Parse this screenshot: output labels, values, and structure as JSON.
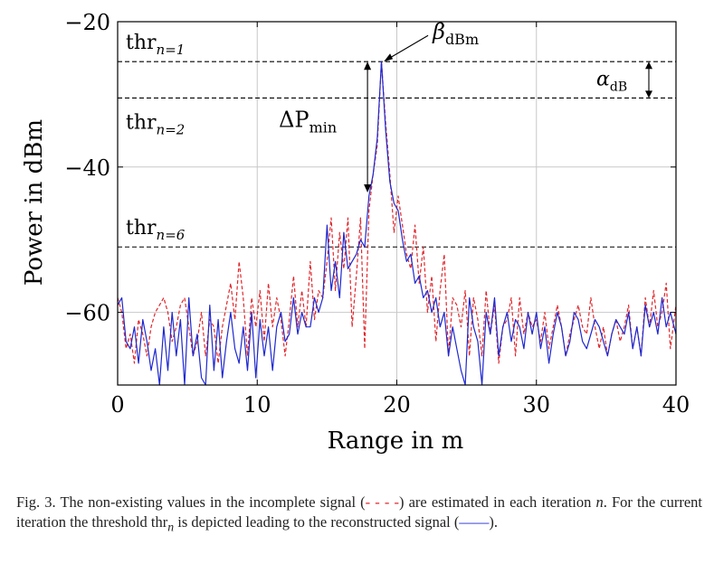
{
  "chart_data": {
    "type": "line",
    "xlabel": "Range in m",
    "ylabel": "Power in dBm",
    "xlim": [
      0,
      40
    ],
    "ylim": [
      -70,
      -20
    ],
    "xticks": [
      0,
      10,
      20,
      30,
      40
    ],
    "yticks": [
      -20,
      -40,
      -60
    ],
    "xtick_labels": [
      "0",
      "10",
      "20",
      "30",
      "40"
    ],
    "ytick_labels": [
      "−20",
      "−40",
      "−60"
    ],
    "grid": true,
    "thresholds": [
      {
        "label_base": "thr",
        "label_sub": "n=1",
        "value": -25.5
      },
      {
        "label_base": "thr",
        "label_sub": "n=2",
        "value": -30.5
      },
      {
        "label_base": "thr",
        "label_sub": "n=6",
        "value": -51
      }
    ],
    "annotations": {
      "beta": {
        "base": "β",
        "sub": "dBm",
        "x": 19,
        "y": -25.5
      },
      "alpha": {
        "base": "α",
        "sub": "dB",
        "y_top": -25.5,
        "y_bottom": -30.5
      },
      "delta": {
        "base": "ΔP",
        "sub": "min",
        "x": 17.9,
        "y_top": -25.5,
        "y_bottom": -43.5
      }
    },
    "series": [
      {
        "name": "estimated",
        "style": "dashed",
        "color": "#e0262b",
        "x": [
          0,
          0.3,
          0.6,
          0.9,
          1.2,
          1.5,
          1.8,
          2.1,
          2.4,
          2.7,
          3.0,
          3.3,
          3.6,
          3.9,
          4.2,
          4.5,
          4.8,
          5.1,
          5.4,
          5.7,
          6.0,
          6.3,
          6.6,
          6.9,
          7.2,
          7.5,
          7.8,
          8.1,
          8.4,
          8.7,
          9.0,
          9.3,
          9.6,
          9.9,
          10.2,
          10.5,
          10.8,
          11.1,
          11.4,
          11.7,
          12.0,
          12.3,
          12.6,
          12.9,
          13.2,
          13.5,
          13.8,
          14.1,
          14.4,
          14.7,
          15.0,
          15.3,
          15.6,
          15.9,
          16.2,
          16.5,
          16.8,
          17.1,
          17.4,
          17.7,
          18.0,
          18.3,
          18.6,
          18.9,
          19.2,
          19.5,
          19.8,
          20.1,
          20.4,
          20.7,
          21.0,
          21.3,
          21.6,
          21.9,
          22.2,
          22.5,
          22.8,
          23.1,
          23.4,
          23.7,
          24.0,
          24.3,
          24.6,
          24.9,
          25.2,
          25.5,
          25.8,
          26.1,
          26.4,
          26.7,
          27.0,
          27.3,
          27.6,
          27.9,
          28.2,
          28.5,
          28.8,
          29.1,
          29.4,
          29.7,
          30.0,
          30.3,
          30.6,
          30.9,
          31.2,
          31.5,
          31.8,
          32.1,
          32.4,
          32.7,
          33.0,
          33.3,
          33.6,
          33.9,
          34.2,
          34.5,
          34.8,
          35.1,
          35.4,
          35.7,
          36.0,
          36.3,
          36.6,
          36.9,
          37.2,
          37.5,
          37.8,
          38.1,
          38.4,
          38.7,
          39.0,
          39.3,
          39.6,
          40.0
        ],
        "values": [
          -58,
          -60,
          -65,
          -63,
          -67,
          -61,
          -63,
          -66,
          -62,
          -60,
          -59,
          -58,
          -60,
          -64,
          -62,
          -59,
          -58,
          -62,
          -66,
          -64,
          -60,
          -66,
          -61,
          -62,
          -67,
          -62,
          -59,
          -56,
          -61,
          -53,
          -58,
          -66,
          -58,
          -62,
          -57,
          -64,
          -56,
          -62,
          -58,
          -61,
          -66,
          -61,
          -55,
          -62,
          -57,
          -62,
          -53,
          -61,
          -57,
          -58,
          -53,
          -47,
          -57,
          -49,
          -54,
          -47,
          -62,
          -55,
          -47,
          -65,
          -46,
          -41,
          -37,
          -25.5,
          -34,
          -41,
          -49,
          -44,
          -48,
          -52,
          -54,
          -48,
          -56,
          -51,
          -60,
          -55,
          -64,
          -57,
          -52,
          -66,
          -58,
          -59,
          -62,
          -57,
          -66,
          -58,
          -61,
          -66,
          -57,
          -63,
          -59,
          -67,
          -62,
          -61,
          -58,
          -66,
          -58,
          -63,
          -60,
          -62,
          -61,
          -64,
          -60,
          -65,
          -62,
          -59,
          -62,
          -66,
          -63,
          -61,
          -59,
          -62,
          -63,
          -58,
          -62,
          -65,
          -62,
          -66,
          -63,
          -61,
          -64,
          -62,
          -59,
          -65,
          -62,
          -66,
          -58,
          -62,
          -57,
          -62,
          -60,
          -56,
          -65,
          -59
        ]
      },
      {
        "name": "reconstructed",
        "style": "solid",
        "color": "#1e28d0",
        "x": [
          0,
          0.3,
          0.6,
          0.9,
          1.2,
          1.5,
          1.8,
          2.1,
          2.4,
          2.7,
          3.0,
          3.3,
          3.6,
          3.9,
          4.2,
          4.5,
          4.8,
          5.1,
          5.4,
          5.7,
          6.0,
          6.3,
          6.6,
          6.9,
          7.2,
          7.5,
          7.8,
          8.1,
          8.4,
          8.7,
          9.0,
          9.3,
          9.6,
          9.9,
          10.2,
          10.5,
          10.8,
          11.1,
          11.4,
          11.7,
          12.0,
          12.3,
          12.6,
          12.9,
          13.2,
          13.5,
          13.8,
          14.1,
          14.4,
          14.7,
          15.0,
          15.3,
          15.6,
          15.9,
          16.2,
          16.5,
          16.8,
          17.1,
          17.4,
          17.7,
          18.0,
          18.3,
          18.6,
          18.9,
          19.2,
          19.5,
          19.8,
          20.1,
          20.4,
          20.7,
          21.0,
          21.3,
          21.6,
          21.9,
          22.2,
          22.5,
          22.8,
          23.1,
          23.4,
          23.7,
          24.0,
          24.3,
          24.6,
          24.9,
          25.2,
          25.5,
          25.8,
          26.1,
          26.4,
          26.7,
          27.0,
          27.3,
          27.6,
          27.9,
          28.2,
          28.5,
          28.8,
          29.1,
          29.4,
          29.7,
          30.0,
          30.3,
          30.6,
          30.9,
          31.2,
          31.5,
          31.8,
          32.1,
          32.4,
          32.7,
          33.0,
          33.3,
          33.6,
          33.9,
          34.2,
          34.5,
          34.8,
          35.1,
          35.4,
          35.7,
          36.0,
          36.3,
          36.6,
          36.9,
          37.2,
          37.5,
          37.8,
          38.1,
          38.4,
          38.7,
          39.0,
          39.3,
          39.6,
          40.0
        ],
        "values": [
          -59,
          -58,
          -64,
          -65,
          -62,
          -67,
          -61,
          -64,
          -68,
          -65,
          -70,
          -62,
          -68,
          -60,
          -66,
          -61,
          -70,
          -58,
          -66,
          -63,
          -69,
          -70,
          -59,
          -68,
          -61,
          -69,
          -64,
          -60,
          -65,
          -67,
          -62,
          -68,
          -60,
          -69,
          -61,
          -66,
          -62,
          -68,
          -62,
          -60,
          -64,
          -63,
          -58,
          -63,
          -60,
          -62,
          -62,
          -58,
          -60,
          -58,
          -48,
          -57,
          -53,
          -58,
          -49,
          -54,
          -53,
          -52,
          -50,
          -51,
          -44,
          -41,
          -36,
          -25.5,
          -35,
          -42,
          -45,
          -46,
          -50,
          -53,
          -52,
          -56,
          -55,
          -58,
          -57,
          -60,
          -58,
          -62,
          -60,
          -66,
          -62,
          -65,
          -68,
          -70,
          -58,
          -62,
          -64,
          -70,
          -60,
          -63,
          -58,
          -66,
          -62,
          -60,
          -64,
          -61,
          -62,
          -65,
          -60,
          -63,
          -60,
          -65,
          -62,
          -67,
          -63,
          -60,
          -62,
          -66,
          -64,
          -60,
          -61,
          -64,
          -65,
          -63,
          -61,
          -62,
          -64,
          -66,
          -63,
          -61,
          -62,
          -63,
          -60,
          -65,
          -62,
          -66,
          -59,
          -62,
          -60,
          -63,
          -58,
          -62,
          -60,
          -63
        ]
      }
    ]
  },
  "caption": {
    "fig_label": "Fig. 3.",
    "text_1": "The non-existing values in the incomplete signal (",
    "dash_sample": "- - - -",
    "text_2": ") are estimated in each iteration ",
    "iter_var": "n",
    "text_3": ". For the current iteration the threshold thr",
    "thr_sub": "n",
    "text_4": " is depicted leading to the reconstructed signal (",
    "solid_sample": "——",
    "text_5": ")."
  }
}
